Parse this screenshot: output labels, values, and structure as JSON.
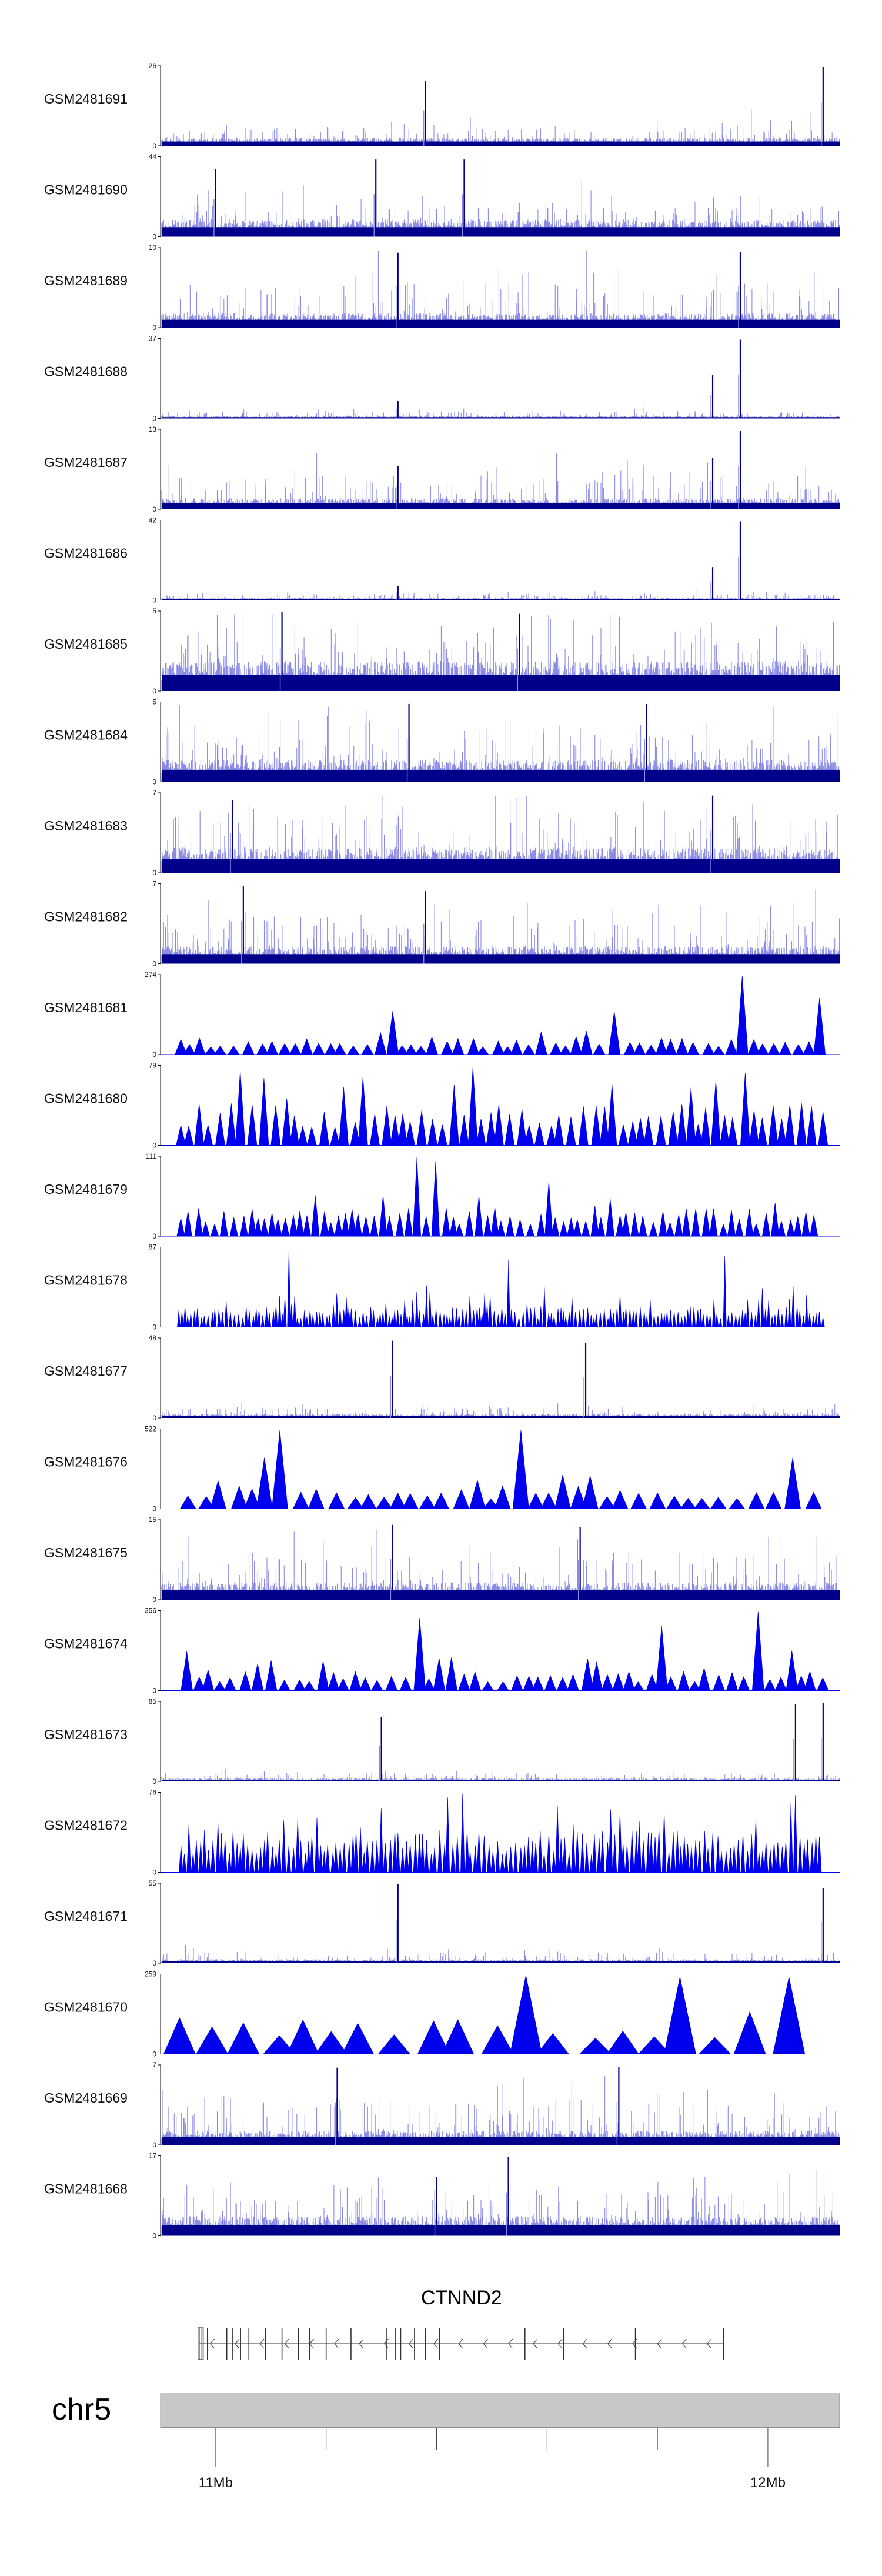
{
  "chart_data": {
    "type": "coverage_tracks",
    "chromosome": "chr5",
    "region_mb": [
      10.9,
      12.13
    ],
    "x_ticks": [
      {
        "pos": 11.0,
        "label": "11Mb"
      },
      {
        "pos": 12.0,
        "label": "12Mb"
      }
    ],
    "x_minor_ticks": [
      11.2,
      11.4,
      11.6,
      11.8
    ],
    "colors": {
      "bar_track": "#00008b",
      "bar_tip": "#8a8ae6",
      "area_track": "#0000ee",
      "axis": "#000000",
      "ideogram_fill": "#c8c8c8",
      "gene": "#333333"
    },
    "tracks": [
      {
        "name": "GSM2481691",
        "ymax": 26,
        "style": "bars",
        "base": 0.1,
        "noise": 0.16,
        "peaks": [
          [
            11.38,
            0.82
          ],
          [
            12.1,
            1.0
          ]
        ]
      },
      {
        "name": "GSM2481690",
        "ymax": 44,
        "style": "bars",
        "base": 0.22,
        "noise": 0.28,
        "peaks": [
          [
            11.29,
            0.98
          ],
          [
            11.45,
            0.98
          ],
          [
            11.0,
            0.86
          ]
        ]
      },
      {
        "name": "GSM2481689",
        "ymax": 10,
        "style": "bars",
        "base": 0.18,
        "noise": 0.42,
        "peaks": [
          [
            11.33,
            0.95
          ],
          [
            11.95,
            0.96
          ]
        ]
      },
      {
        "name": "GSM2481688",
        "ymax": 37,
        "style": "bars",
        "base": 0.03,
        "noise": 0.07,
        "peaks": [
          [
            11.9,
            0.55
          ],
          [
            11.95,
            1.0
          ],
          [
            11.33,
            0.22
          ]
        ]
      },
      {
        "name": "GSM2481687",
        "ymax": 13,
        "style": "bars",
        "base": 0.14,
        "noise": 0.32,
        "peaks": [
          [
            11.95,
            1.0
          ],
          [
            11.9,
            0.65
          ],
          [
            11.33,
            0.55
          ]
        ]
      },
      {
        "name": "GSM2481686",
        "ymax": 42,
        "style": "bars",
        "base": 0.03,
        "noise": 0.06,
        "peaks": [
          [
            11.95,
            1.0
          ],
          [
            11.9,
            0.42
          ],
          [
            11.33,
            0.18
          ]
        ]
      },
      {
        "name": "GSM2481685",
        "ymax": 5,
        "style": "bars",
        "base": 0.38,
        "noise": 0.55,
        "peaks": [
          [
            11.12,
            1.0
          ],
          [
            11.55,
            0.98
          ]
        ]
      },
      {
        "name": "GSM2481684",
        "ymax": 5,
        "style": "bars",
        "base": 0.28,
        "noise": 0.5,
        "peaks": [
          [
            11.35,
            0.99
          ],
          [
            11.78,
            0.99
          ]
        ]
      },
      {
        "name": "GSM2481683",
        "ymax": 7,
        "style": "bars",
        "base": 0.32,
        "noise": 0.52,
        "peaks": [
          [
            11.9,
            0.98
          ],
          [
            11.03,
            0.92
          ]
        ]
      },
      {
        "name": "GSM2481682",
        "ymax": 7,
        "style": "bars",
        "base": 0.22,
        "noise": 0.48,
        "peaks": [
          [
            11.05,
            0.98
          ],
          [
            11.38,
            0.92
          ]
        ]
      },
      {
        "name": "GSM2481681",
        "ymax": 274,
        "style": "area",
        "spacing": 0.022,
        "base": 0.18,
        "noise": 0.18,
        "peaks": [
          [
            11.95,
            1.0
          ],
          [
            11.32,
            0.55
          ],
          [
            12.1,
            0.72
          ],
          [
            11.72,
            0.55
          ]
        ]
      },
      {
        "name": "GSM2481680",
        "ymax": 79,
        "style": "area",
        "spacing": 0.018,
        "base": 0.45,
        "noise": 0.45,
        "peaks": [
          [
            11.47,
            1.0
          ],
          [
            11.04,
            0.95
          ],
          [
            11.95,
            0.92
          ]
        ]
      },
      {
        "name": "GSM2481679",
        "ymax": 111,
        "style": "area",
        "spacing": 0.015,
        "base": 0.3,
        "noise": 0.3,
        "peaks": [
          [
            11.36,
            1.0
          ],
          [
            11.4,
            0.95
          ],
          [
            11.6,
            0.7
          ]
        ]
      },
      {
        "name": "GSM2481678",
        "ymax": 87,
        "style": "area",
        "spacing": 0.006,
        "base": 0.22,
        "noise": 0.3,
        "peaks": [
          [
            11.13,
            1.0
          ],
          [
            11.53,
            0.85
          ],
          [
            11.92,
            0.9
          ]
        ]
      },
      {
        "name": "GSM2481677",
        "ymax": 48,
        "style": "bars",
        "base": 0.05,
        "noise": 0.1,
        "peaks": [
          [
            11.32,
            0.98
          ],
          [
            11.67,
            0.95
          ]
        ]
      },
      {
        "name": "GSM2481676",
        "ymax": 522,
        "style": "area",
        "spacing": 0.03,
        "base": 0.25,
        "noise": 0.2,
        "peaks": [
          [
            11.13,
            1.0
          ],
          [
            11.55,
            1.0
          ],
          [
            11.1,
            0.65
          ],
          [
            12.03,
            0.65
          ]
        ]
      },
      {
        "name": "GSM2481675",
        "ymax": 15,
        "style": "bars",
        "base": 0.22,
        "noise": 0.42,
        "peaks": [
          [
            11.32,
            0.95
          ],
          [
            11.66,
            0.92
          ]
        ]
      },
      {
        "name": "GSM2481674",
        "ymax": 356,
        "style": "area",
        "spacing": 0.022,
        "base": 0.22,
        "noise": 0.28,
        "peaks": [
          [
            11.97,
            1.0
          ],
          [
            11.36,
            0.92
          ],
          [
            11.8,
            0.82
          ]
        ]
      },
      {
        "name": "GSM2481673",
        "ymax": 85,
        "style": "bars",
        "base": 0.04,
        "noise": 0.08,
        "peaks": [
          [
            12.1,
            1.0
          ],
          [
            12.05,
            0.98
          ],
          [
            11.3,
            0.82
          ]
        ]
      },
      {
        "name": "GSM2481672",
        "ymax": 76,
        "style": "area",
        "spacing": 0.0075,
        "base": 0.45,
        "noise": 0.45,
        "peaks": [
          [
            11.45,
            1.0
          ],
          [
            12.05,
            0.98
          ],
          [
            11.42,
            0.95
          ]
        ]
      },
      {
        "name": "GSM2481671",
        "ymax": 55,
        "style": "bars",
        "base": 0.05,
        "noise": 0.1,
        "peaks": [
          [
            11.33,
            1.0
          ],
          [
            12.1,
            0.95
          ]
        ]
      },
      {
        "name": "GSM2481670",
        "ymax": 259,
        "style": "area",
        "spacing": 0.06,
        "base": 0.4,
        "noise": 0.25,
        "peaks": [
          [
            11.54,
            1.0
          ],
          [
            11.84,
            0.98
          ],
          [
            12.03,
            0.98
          ]
        ]
      },
      {
        "name": "GSM2481669",
        "ymax": 7,
        "style": "bars",
        "base": 0.18,
        "noise": 0.45,
        "peaks": [
          [
            11.22,
            0.98
          ],
          [
            11.73,
            0.99
          ]
        ]
      },
      {
        "name": "GSM2481668",
        "ymax": 17,
        "style": "bars",
        "base": 0.25,
        "noise": 0.4,
        "peaks": [
          [
            11.53,
            1.0
          ],
          [
            11.4,
            0.75
          ]
        ]
      }
    ],
    "gene": {
      "name": "CTNND2",
      "start": 10.97,
      "end": 11.92,
      "strand": "-",
      "exons": [
        10.97,
        10.975,
        10.985,
        11.02,
        11.03,
        11.045,
        11.06,
        11.09,
        11.12,
        11.15,
        11.17,
        11.2,
        11.245,
        11.31,
        11.325,
        11.335,
        11.36,
        11.38,
        11.405,
        11.56,
        11.63,
        11.76,
        11.92
      ]
    }
  }
}
